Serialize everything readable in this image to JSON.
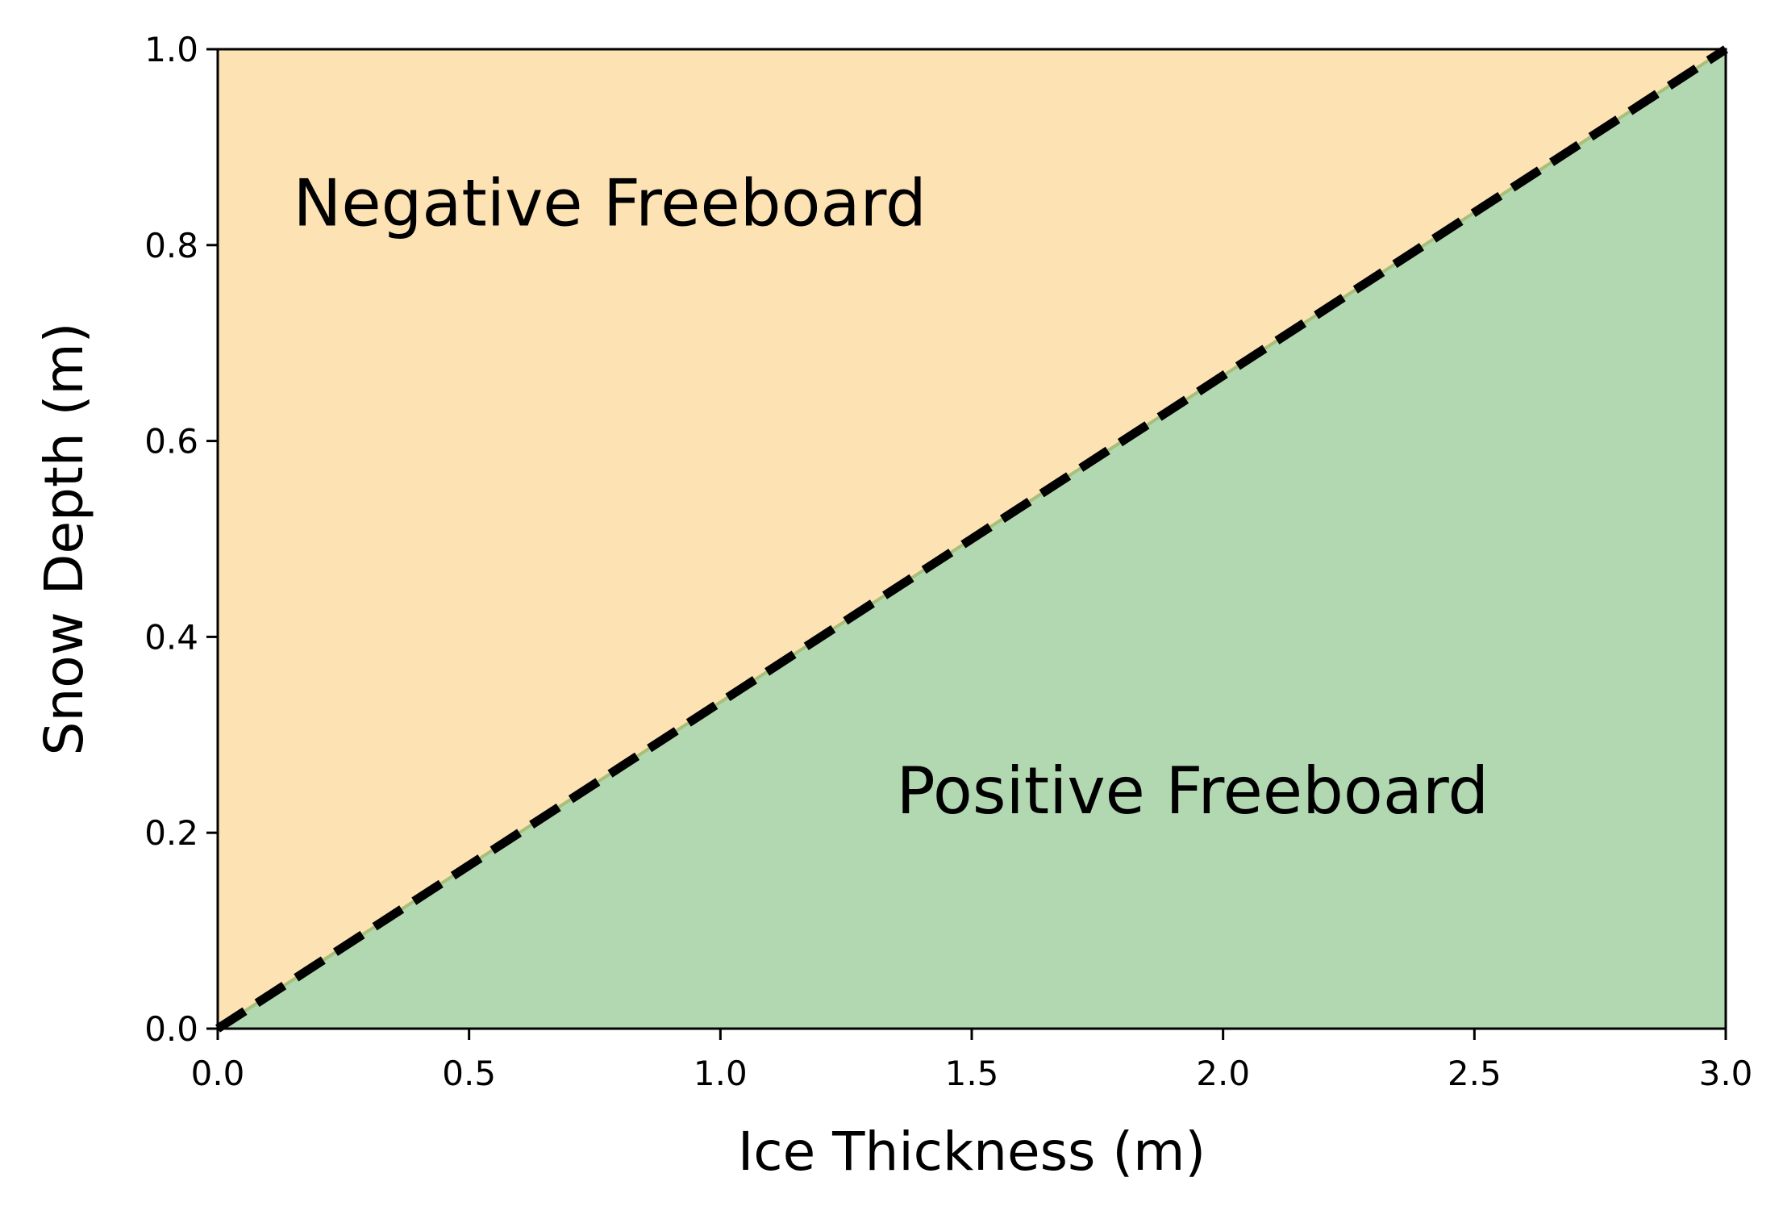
{
  "chart_data": {
    "type": "area",
    "xlabel": "Ice Thickness (m)",
    "ylabel": "Snow Depth (m)",
    "xlim": [
      0.0,
      3.0
    ],
    "ylim": [
      0.0,
      1.0
    ],
    "x_ticks": [
      "0.0",
      "0.5",
      "1.0",
      "1.5",
      "2.0",
      "2.5",
      "3.0"
    ],
    "y_ticks": [
      "0.0",
      "0.2",
      "0.4",
      "0.6",
      "0.8",
      "1.0"
    ],
    "boundary_line": {
      "style": "dashed",
      "color": "#000000",
      "x": [
        0.0,
        3.0
      ],
      "y": [
        0.0,
        1.0
      ]
    },
    "regions": [
      {
        "label": "Negative Freeboard",
        "side": "above-line",
        "color": "#fde2b4",
        "label_anchor": {
          "x": 0.15,
          "y": 0.82
        }
      },
      {
        "label": "Positive Freeboard",
        "side": "below-line",
        "color": "#b2d8b2",
        "label_anchor": {
          "x": 1.35,
          "y": 0.22
        }
      }
    ],
    "grid": false,
    "legend": "none"
  }
}
